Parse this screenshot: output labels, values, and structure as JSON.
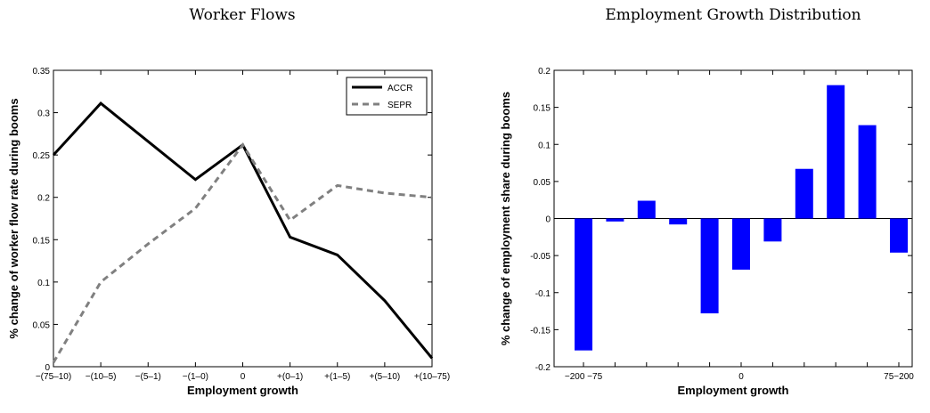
{
  "chart_data": [
    {
      "type": "line",
      "title": "Worker Flows",
      "x_label": "Employment growth",
      "y_label": "% change of worker flow rate during booms",
      "categories": [
        "−(75–10)",
        "−(10–5)",
        "−(5–1)",
        "−(1–0)",
        "0",
        "+(0–1)",
        "+(1–5)",
        "+(5–10)",
        "+(10–75)"
      ],
      "series": [
        {
          "name": "ACCR",
          "color": "#000000",
          "dash": false,
          "values": [
            0.25,
            0.311,
            0.266,
            0.221,
            0.262,
            0.153,
            0.132,
            0.078,
            0.01
          ]
        },
        {
          "name": "SEPR",
          "color": "#808080",
          "dash": true,
          "values": [
            0.005,
            0.1,
            0.145,
            0.187,
            0.262,
            0.173,
            0.214,
            0.205,
            0.2
          ]
        }
      ],
      "ylim": [
        0,
        0.35
      ],
      "yticks": [
        0,
        0.05,
        0.1,
        0.15,
        0.2,
        0.25,
        0.3,
        0.35
      ],
      "legend": "top-right"
    },
    {
      "type": "bar",
      "title": "Employment Growth Distribution",
      "x_label": "Employment growth",
      "y_label": "% change of employment share during booms",
      "categories": [
        "−200 −75",
        null,
        null,
        null,
        null,
        "0",
        null,
        null,
        null,
        null,
        "75−200"
      ],
      "values": [
        -0.178,
        -0.004,
        0.024,
        -0.008,
        -0.128,
        -0.069,
        -0.031,
        0.067,
        0.18,
        0.126,
        -0.046
      ],
      "color": "#0000ff",
      "ylim": [
        -0.2,
        0.2
      ],
      "yticks": [
        -0.2,
        -0.15,
        -0.1,
        -0.05,
        0,
        0.05,
        0.1,
        0.15,
        0.2
      ]
    }
  ]
}
